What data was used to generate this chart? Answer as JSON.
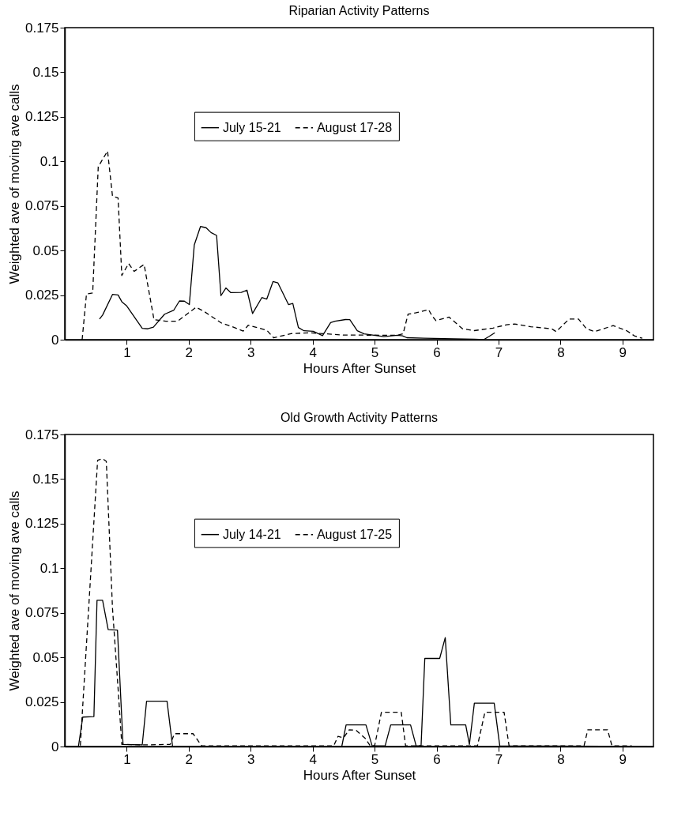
{
  "chart_data": [
    {
      "type": "line",
      "title": "Riparian Activity Patterns",
      "xlabel": "Hours After Sunset",
      "ylabel": "Weighted ave of moving ave calls",
      "xlim": [
        0,
        9.5
      ],
      "xticks": [
        1,
        2,
        3,
        4,
        5,
        6,
        7,
        8,
        9
      ],
      "ylim": [
        0,
        0.175
      ],
      "yticks": [
        0,
        0.025,
        0.05,
        0.075,
        0.1,
        0.125,
        0.15,
        0.175
      ],
      "grid": false,
      "legend": "top",
      "marker": "none",
      "series": [
        {
          "name": "July 15-21",
          "color": "#000000",
          "line_style": "solid",
          "x": [
            0.56,
            0.61,
            0.77,
            0.86,
            0.92,
            1.0,
            1.25,
            1.34,
            1.43,
            1.61,
            1.76,
            1.85,
            1.93,
            2.01,
            2.09,
            2.19,
            2.28,
            2.36,
            2.45,
            2.52,
            2.6,
            2.68,
            2.85,
            2.94,
            3.03,
            3.18,
            3.26,
            3.36,
            3.44,
            3.61,
            3.68,
            3.77,
            3.86,
            4.01,
            4.16,
            4.29,
            4.36,
            4.53,
            4.6,
            4.72,
            4.83,
            5.15,
            5.37,
            5.45,
            5.52,
            5.8,
            6.61,
            6.76,
            6.85,
            6.94
          ],
          "values": [
            0.0116,
            0.0138,
            0.0254,
            0.0251,
            0.0213,
            0.0189,
            0.0064,
            0.0061,
            0.007,
            0.0143,
            0.0166,
            0.0217,
            0.0216,
            0.0197,
            0.0532,
            0.0635,
            0.0628,
            0.0601,
            0.0585,
            0.0247,
            0.029,
            0.0264,
            0.0265,
            0.0278,
            0.0147,
            0.0236,
            0.0228,
            0.0326,
            0.0318,
            0.0197,
            0.0203,
            0.0068,
            0.005,
            0.0047,
            0.0023,
            0.0096,
            0.0104,
            0.0113,
            0.0112,
            0.005,
            0.0033,
            0.0017,
            0.0025,
            0.0022,
            0.0011,
            0.0008,
            0.0003,
            0,
            0.0019,
            0.0039
          ]
        },
        {
          "name": "August 17-28",
          "color": "#000000",
          "line_style": "dashed",
          "x": [
            0.28,
            0.35,
            0.45,
            0.54,
            0.69,
            0.77,
            0.86,
            0.92,
            1.03,
            1.12,
            1.28,
            1.44,
            1.63,
            1.82,
            2.12,
            2.25,
            2.53,
            2.7,
            2.88,
            2.96,
            3.26,
            3.37,
            3.52,
            3.65,
            3.95,
            4.5,
            5.37,
            5.46,
            5.54,
            5.67,
            5.87,
            5.93,
            5.99,
            6.2,
            6.42,
            6.61,
            6.91,
            7.13,
            7.26,
            7.52,
            7.86,
            7.93,
            8.14,
            8.29,
            8.42,
            8.55,
            8.85,
            9.07,
            9.19,
            9.32
          ],
          "values": [
            0,
            0.0256,
            0.0262,
            0.097,
            0.1058,
            0.0805,
            0.0795,
            0.036,
            0.0427,
            0.0383,
            0.0422,
            0.0112,
            0.0104,
            0.0104,
            0.0182,
            0.0158,
            0.0093,
            0.0073,
            0.0048,
            0.0081,
            0.0053,
            0.0011,
            0.0023,
            0.0034,
            0.0039,
            0.0026,
            0.0025,
            0.0033,
            0.0143,
            0.0151,
            0.0169,
            0.0132,
            0.0107,
            0.0127,
            0.0061,
            0.0051,
            0.0065,
            0.0084,
            0.0088,
            0.0073,
            0.0061,
            0.0045,
            0.0116,
            0.0116,
            0.0061,
            0.0045,
            0.0079,
            0.005,
            0.0022,
            0.0008
          ]
        }
      ]
    },
    {
      "type": "line",
      "title": "Old Growth Activity Patterns",
      "xlabel": "Hours After Sunset",
      "ylabel": "Weighted ave of moving ave calls",
      "xlim": [
        0,
        9.5
      ],
      "xticks": [
        1,
        2,
        3,
        4,
        5,
        6,
        7,
        8,
        9
      ],
      "ylim": [
        0,
        0.175
      ],
      "yticks": [
        0,
        0.025,
        0.05,
        0.075,
        0.1,
        0.125,
        0.15,
        0.175
      ],
      "grid": false,
      "legend": "top",
      "marker": "none",
      "series": [
        {
          "name": "July 14-21",
          "color": "#000000",
          "line_style": "solid",
          "x": [
            0.01,
            0.22,
            0.29,
            0.47,
            0.52,
            0.61,
            0.7,
            0.85,
            0.94,
            1.25,
            1.32,
            1.65,
            1.74,
            4.47,
            4.54,
            4.86,
            4.96,
            5.17,
            5.26,
            5.58,
            5.67,
            5.75,
            5.81,
            6.05,
            6.14,
            6.23,
            6.47,
            6.53,
            6.61,
            6.93,
            7.02,
            9.4
          ],
          "values": [
            0,
            0,
            0.0165,
            0.0168,
            0.082,
            0.082,
            0.0656,
            0.0653,
            0.0012,
            0.0009,
            0.0254,
            0.0254,
            0,
            0,
            0.0121,
            0.0121,
            0.0004,
            0.0004,
            0.0121,
            0.0121,
            0.0004,
            0.0004,
            0.0494,
            0.0494,
            0.0611,
            0.0121,
            0.0121,
            0.0012,
            0.0243,
            0.0243,
            0.0004,
            0
          ]
        },
        {
          "name": "August 17-25",
          "color": "#000000",
          "line_style": "dashed",
          "x": [
            0.01,
            0.25,
            0.53,
            0.61,
            0.67,
            0.77,
            0.86,
            0.92,
            1.27,
            1.7,
            1.77,
            2.07,
            2.21,
            4.34,
            4.41,
            4.5,
            4.59,
            4.7,
            4.85,
            4.93,
            5.0,
            5.11,
            5.43,
            5.5,
            6.66,
            6.78,
            7.09,
            7.17,
            8.38,
            8.44,
            8.76,
            8.83,
            9.15
          ],
          "values": [
            0,
            0,
            0.1606,
            0.1614,
            0.1599,
            0.0775,
            0.0326,
            0.0012,
            0.0009,
            0.0012,
            0.0072,
            0.0072,
            0.0004,
            0.0004,
            0.0057,
            0.0049,
            0.0094,
            0.0091,
            0.0045,
            0.0004,
            0.0004,
            0.0192,
            0.0192,
            0.0004,
            0.0004,
            0.0192,
            0.0192,
            0.0004,
            0.0004,
            0.0094,
            0.0094,
            0.0004,
            0.0004
          ]
        }
      ]
    }
  ]
}
